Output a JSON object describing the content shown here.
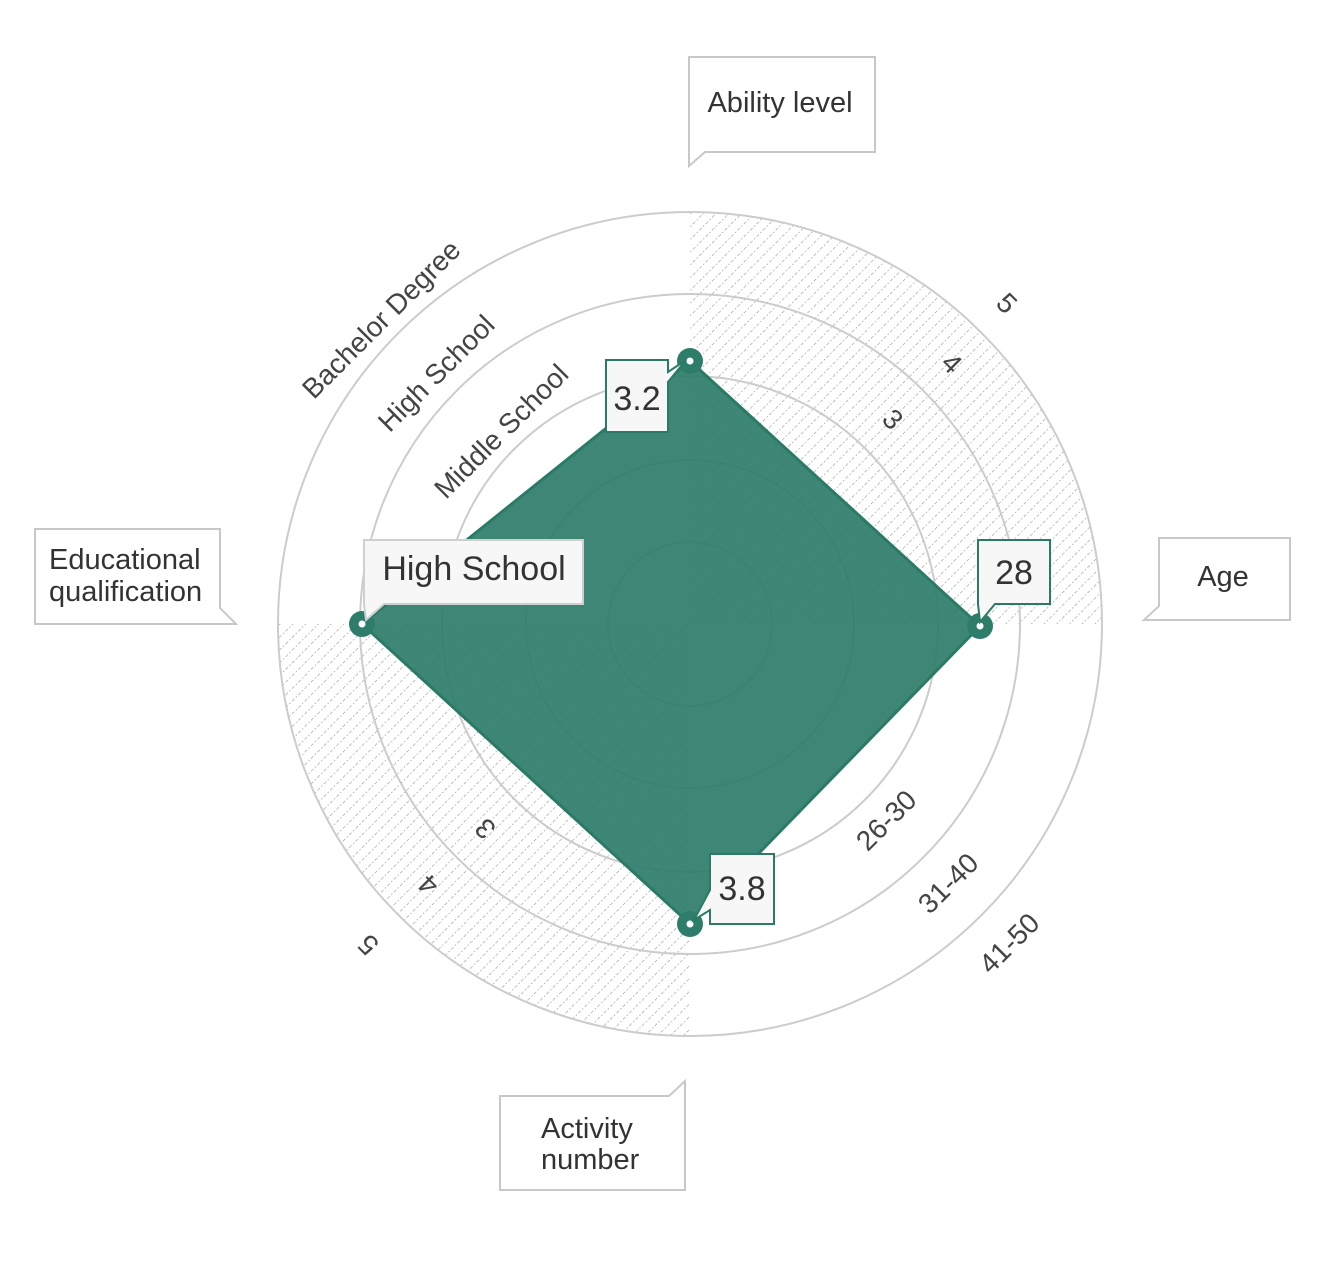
{
  "chart_data": {
    "type": "radar",
    "axes": [
      {
        "name": "Ability level",
        "value": 3.2,
        "value_label": "3.2",
        "tick_labels": [
          "3",
          "4",
          "5"
        ]
      },
      {
        "name": "Age",
        "value": 28,
        "value_label": "28",
        "tick_labels": [
          "26-30",
          "31-40",
          "41-50"
        ]
      },
      {
        "name": "Activity number",
        "value": 3.8,
        "value_label": "3.8",
        "tick_labels": [
          "3",
          "4",
          "5"
        ]
      },
      {
        "name": "Educational qualification",
        "value": "High School",
        "value_label": "High School",
        "tick_labels": [
          "Middle School",
          "High School",
          "Bachelor Degree"
        ]
      }
    ],
    "series": [
      {
        "values": [
          3.2,
          28,
          3.8,
          "High School"
        ]
      }
    ],
    "colors": {
      "fill": "#2e7d6b",
      "stroke": "#2a7a66",
      "grid": "#cccccc",
      "hatch": "#9a9a9a"
    },
    "grid": true
  }
}
